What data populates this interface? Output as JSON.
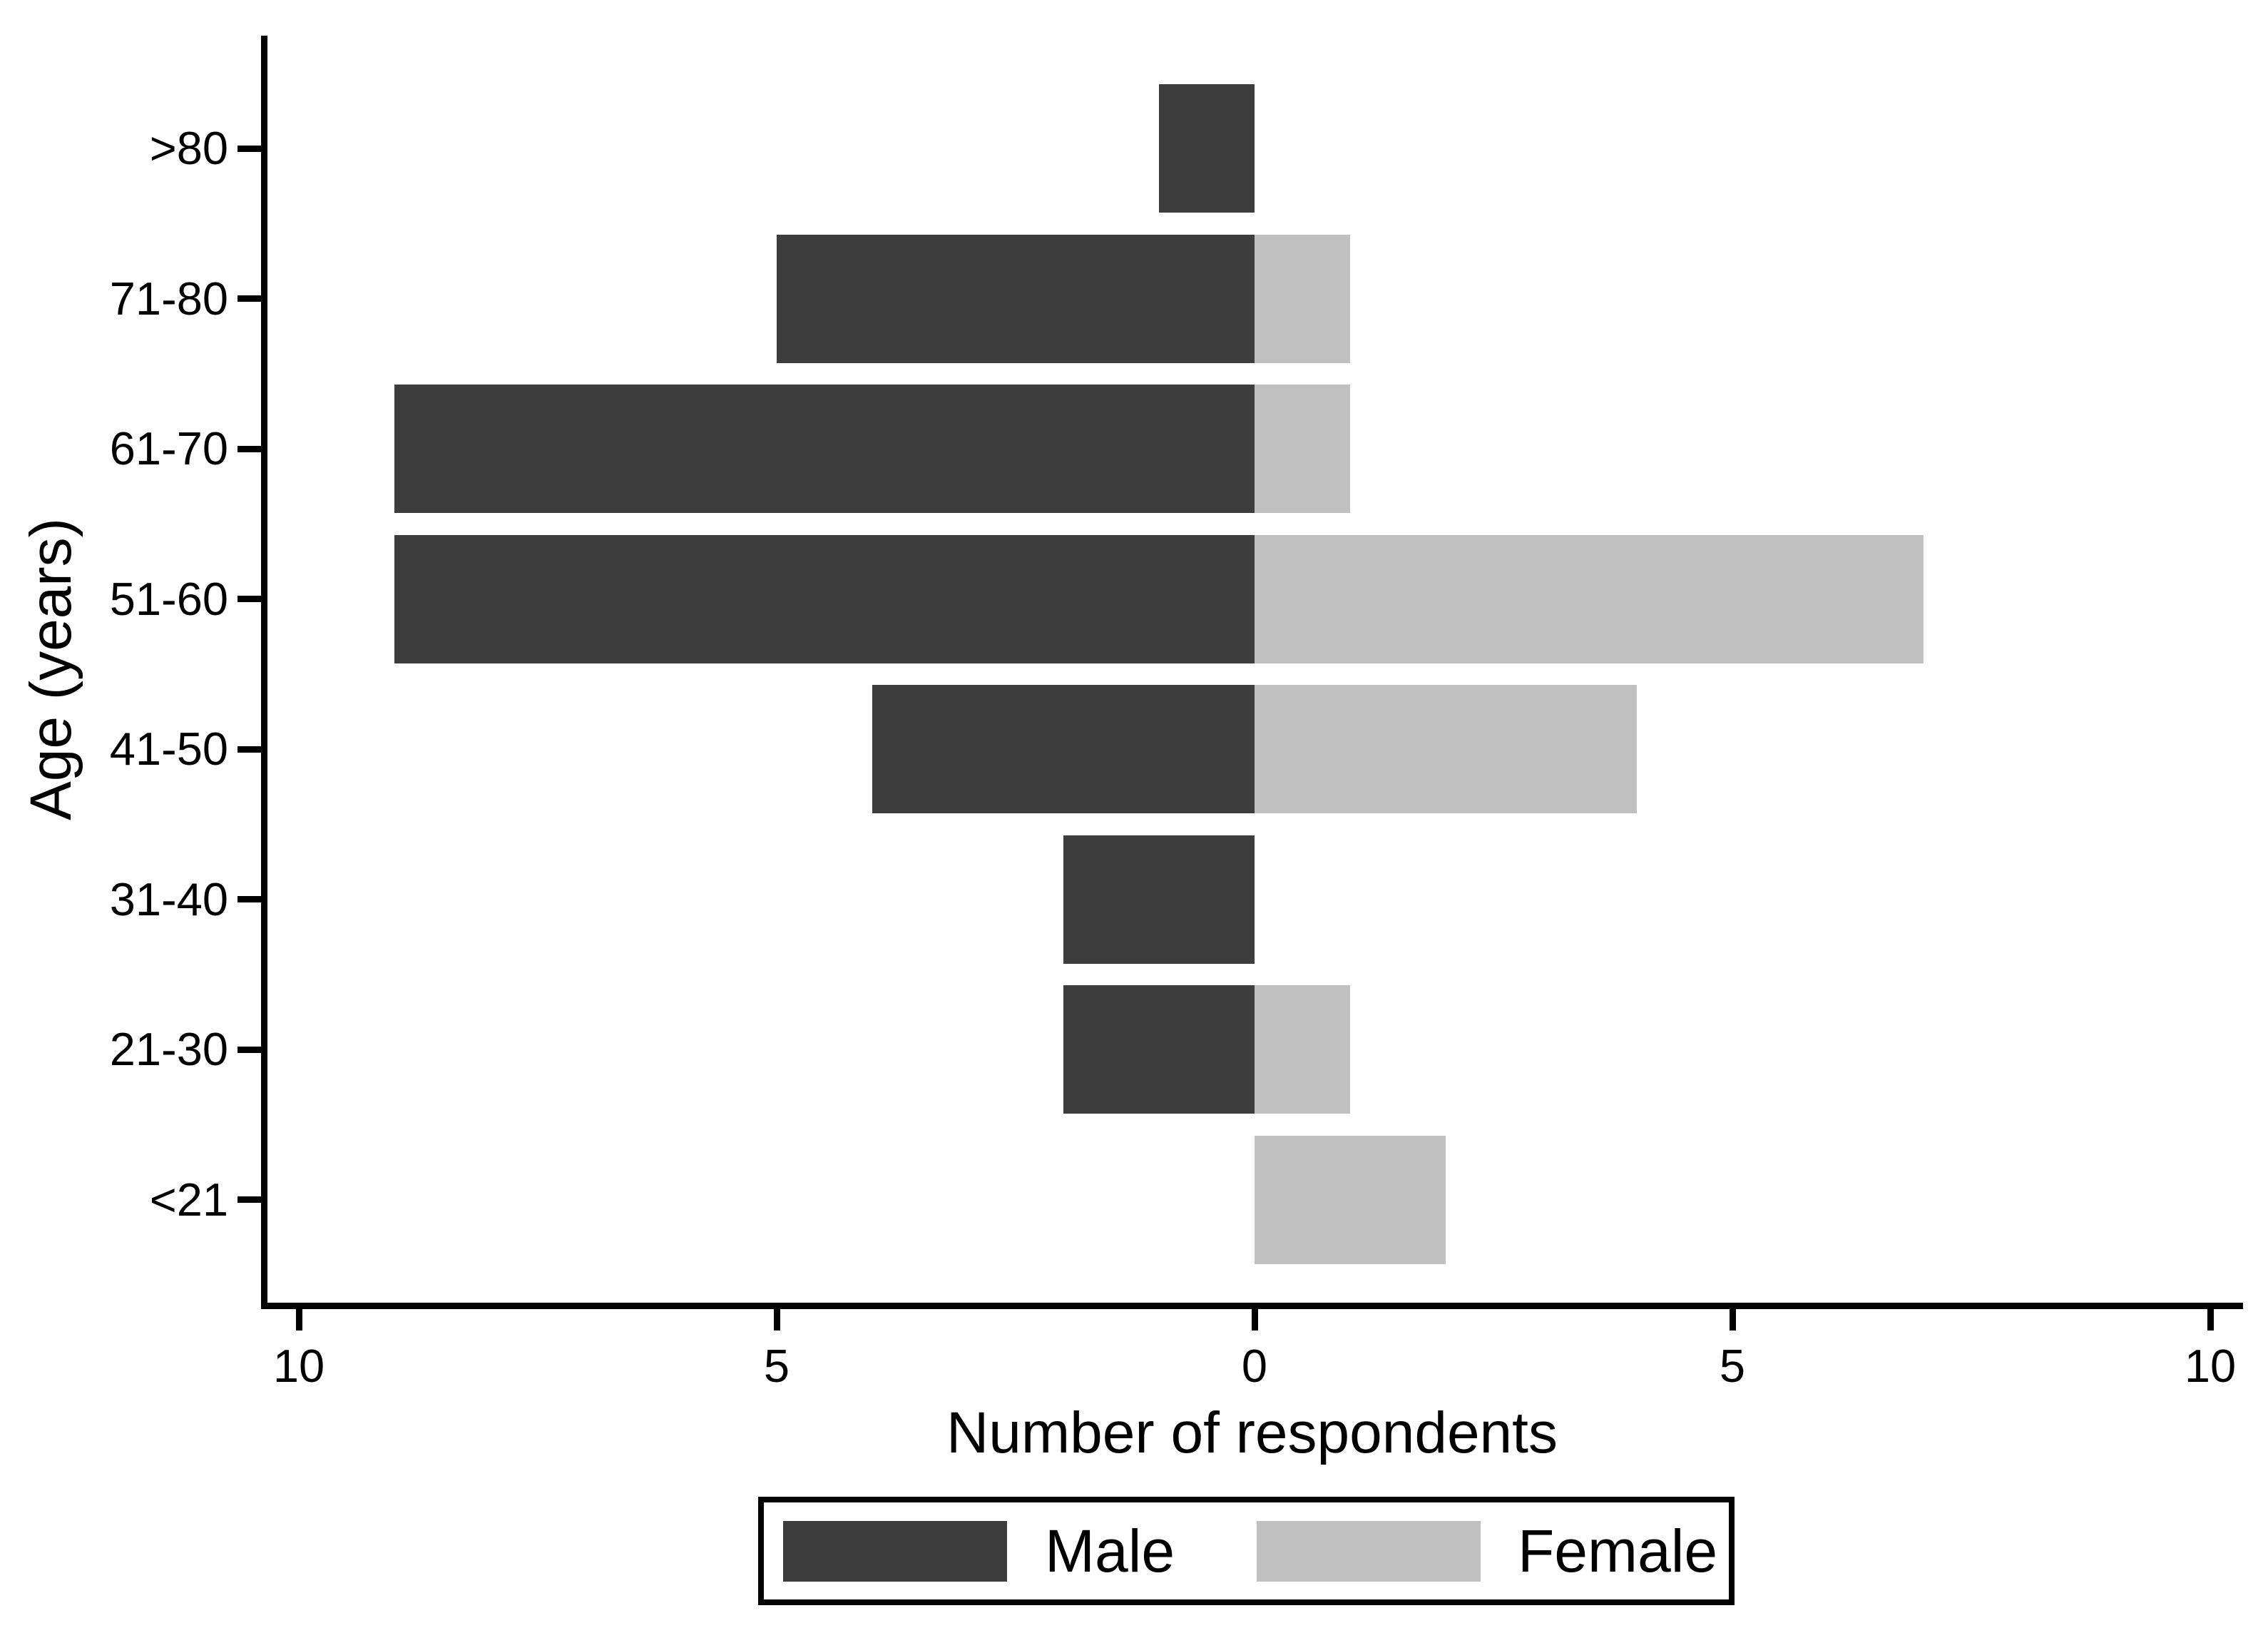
{
  "chart_data": {
    "type": "bar",
    "subtype": "population-pyramid",
    "title": "",
    "xlabel": "Number of respondents",
    "ylabel": "Age (years)",
    "categories": [
      ">80",
      "71-80",
      "61-70",
      "51-60",
      "41-50",
      "31-40",
      "21-30",
      "<21"
    ],
    "series": [
      {
        "name": "Male",
        "side": "left",
        "color": "#3d3d3d",
        "values": [
          1,
          5,
          9,
          9,
          4,
          2,
          2,
          0
        ]
      },
      {
        "name": "Female",
        "side": "right",
        "color": "#c0c0c0",
        "values": [
          0,
          1,
          1,
          7,
          4,
          0,
          1,
          2
        ]
      }
    ],
    "x_axis": {
      "tick_values": [
        -10,
        -5,
        0,
        5,
        10
      ],
      "tick_labels": [
        "10",
        "5",
        "0",
        "5",
        "10"
      ],
      "range": [
        -10.4,
        10.4
      ]
    },
    "y_axis": {
      "tick_labels": [
        ">80",
        "71-80",
        "61-70",
        "51-60",
        "41-50",
        "31-40",
        "21-30",
        "<21"
      ]
    },
    "grid": false,
    "legend": {
      "position": "bottom-center",
      "entries": [
        "Male",
        "Female"
      ]
    }
  },
  "colors": {
    "male": "#3d3d3d",
    "female": "#c0c0c0",
    "axis": "#000000",
    "background": "#ffffff"
  }
}
